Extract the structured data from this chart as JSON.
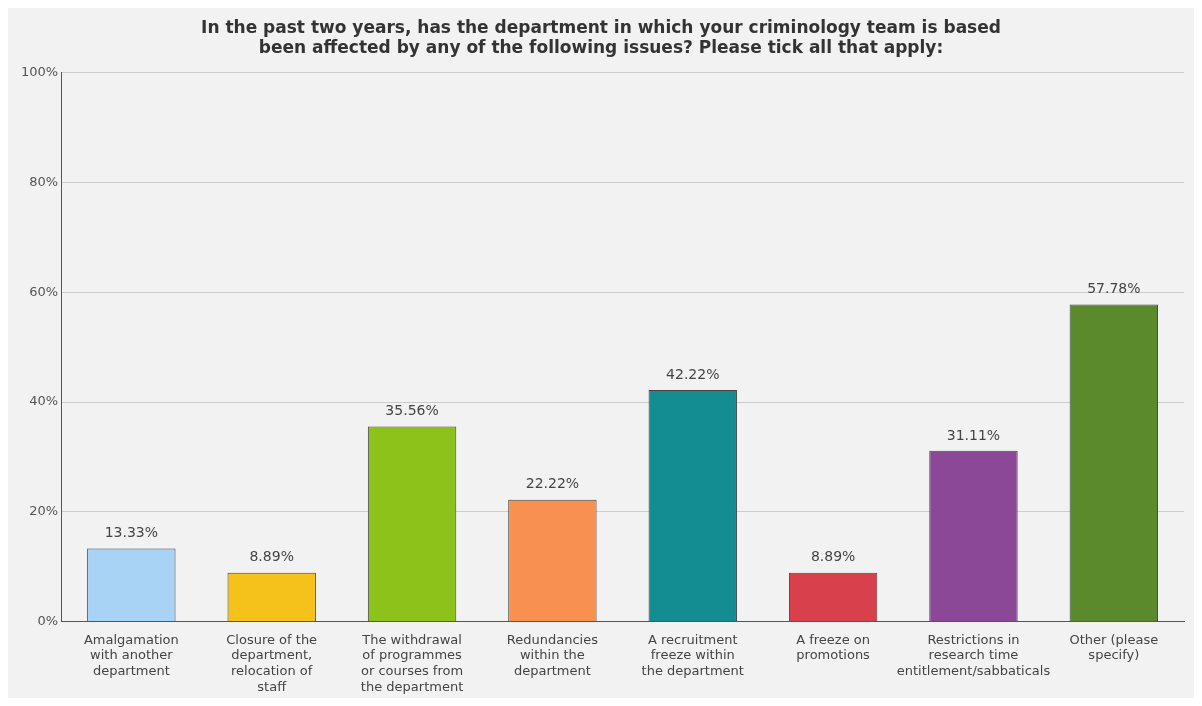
{
  "chart_data": {
    "type": "bar",
    "title": "In the past two years, has the department in which your criminology team is based been affected by any of the following issues? Please tick all that apply:",
    "categories": [
      "Amalgamation with another department",
      "Closure of the department, relocation of staff",
      "The withdrawal of programmes or courses from the department",
      "Redundancies within the department",
      "A recruitment freeze within the department",
      "A freeze on promotions",
      "Restrictions in research time entitlement/sabbaticals",
      "Other (please specify)"
    ],
    "values": [
      13.33,
      8.89,
      35.56,
      22.22,
      42.22,
      8.89,
      31.11,
      57.78
    ],
    "value_labels": [
      "13.33%",
      "8.89%",
      "35.56%",
      "22.22%",
      "42.22%",
      "8.89%",
      "31.11%",
      "57.78%"
    ],
    "colors": [
      "#a9d3f5",
      "#f5c21b",
      "#8cc21a",
      "#f8914f",
      "#138d92",
      "#d8404c",
      "#8b4896",
      "#5b8a2d"
    ],
    "ylim": [
      0,
      100
    ],
    "yticks": [
      {
        "value": 0,
        "label": "0%"
      },
      {
        "value": 20,
        "label": "20%"
      },
      {
        "value": 40,
        "label": "40%"
      },
      {
        "value": 60,
        "label": "60%"
      },
      {
        "value": 80,
        "label": "80%"
      },
      {
        "value": 100,
        "label": "100%"
      }
    ],
    "grid": "y",
    "legend": false
  }
}
